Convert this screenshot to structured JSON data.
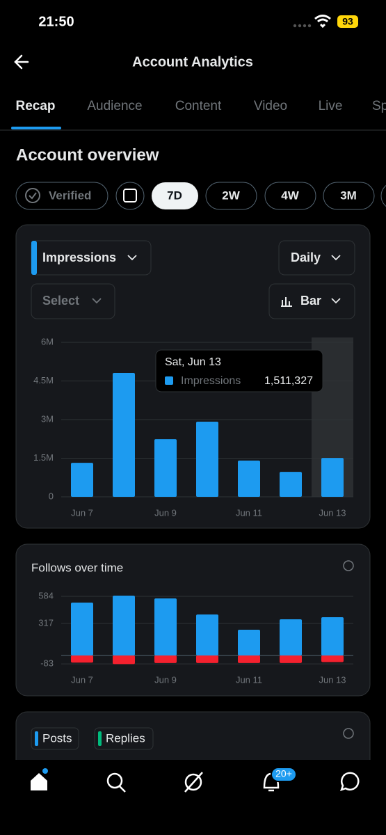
{
  "status_bar": {
    "time": "21:50",
    "battery": "93"
  },
  "header": {
    "title": "Account Analytics"
  },
  "tabs": [
    "Recap",
    "Audience",
    "Content",
    "Video",
    "Live",
    "Sp"
  ],
  "section_title": "Account overview",
  "filters": [
    "Verified",
    "7D",
    "2W",
    "4W",
    "3M"
  ],
  "impressions_card": {
    "metric_dropdown": "Impressions",
    "interval_dropdown": "Daily",
    "select_dropdown": "Select",
    "chart_type_dropdown": "Bar",
    "tooltip": {
      "date": "Sat, Jun 13",
      "series": "Impressions",
      "value": "1,511,327"
    },
    "chart": {
      "type": "bar",
      "categories": [
        "Jun 7",
        null,
        "Jun 9",
        null,
        "Jun 11",
        null,
        "Jun 13"
      ],
      "series": [
        {
          "name": "Impressions",
          "color": "#1d9bf0",
          "values": [
            1320000,
            4810000,
            2240000,
            2920000,
            1410000,
            970000,
            1511327
          ]
        }
      ],
      "ylim": [
        0,
        6000000
      ],
      "yticks": [
        0,
        {
          "value": 1500000,
          "label": "1.5M"
        },
        {
          "value": 3000000,
          "label": "3M"
        },
        {
          "value": 4500000,
          "label": "4.5M"
        },
        {
          "value": 6000000,
          "label": "6M"
        }
      ],
      "grid": true
    }
  },
  "follows_card": {
    "chart": {
      "type": "bar",
      "title": "Follows over time",
      "categories": [
        "Jun 7",
        null,
        "Jun 9",
        null,
        "Jun 11",
        null,
        "Jun 13"
      ],
      "series": [
        {
          "color": "#1d9bf0",
          "values": [
            522,
            591,
            564,
            405,
            254,
            357,
            378
          ]
        },
        {
          "color": "#f4212e",
          "values": [
            -70,
            -85,
            -75,
            -75,
            -75,
            -75,
            -65
          ]
        }
      ],
      "ylim": [
        -90,
        600
      ],
      "yticks": [
        -83,
        317,
        584
      ],
      "grid": true
    }
  },
  "posts_card": {
    "legend": [
      {
        "name": "Posts",
        "color": "#1d9bf0"
      },
      {
        "name": "Replies",
        "color": "#00ba7c"
      }
    ]
  },
  "nav": {
    "notifications_badge": "20+"
  }
}
